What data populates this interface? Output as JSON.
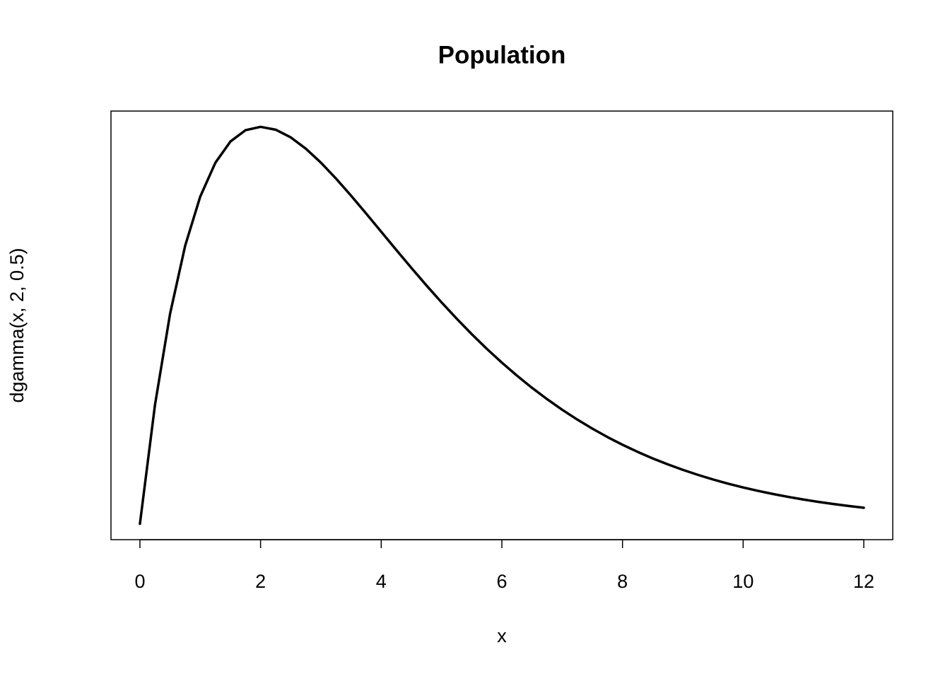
{
  "chart_data": {
    "type": "line",
    "title": "Population",
    "xlabel": "x",
    "ylabel": "dgamma(x, 2, 0.5)",
    "x": [
      0,
      0.25,
      0.5,
      0.75,
      1,
      1.25,
      1.5,
      1.75,
      2,
      2.25,
      2.5,
      2.75,
      3,
      3.25,
      3.5,
      3.75,
      4,
      4.25,
      4.5,
      4.75,
      5,
      5.25,
      5.5,
      5.75,
      6,
      6.25,
      6.5,
      6.75,
      7,
      7.25,
      7.5,
      7.75,
      8,
      8.25,
      8.5,
      8.75,
      9,
      9.25,
      9.5,
      9.75,
      10,
      10.25,
      10.5,
      10.75,
      11,
      11.25,
      11.5,
      11.75,
      12
    ],
    "series": [
      {
        "color": "#000000",
        "values": [
          0,
          0.05516,
          0.09735,
          0.12887,
          0.15163,
          0.16727,
          0.17714,
          0.18238,
          0.18394,
          0.18262,
          0.17906,
          0.17383,
          0.16735,
          0.15999,
          0.15205,
          0.14377,
          0.13534,
          0.12689,
          0.11858,
          0.11045,
          0.1026,
          0.09508,
          0.0879,
          0.0811,
          0.07468,
          0.06866,
          0.063,
          0.05775,
          0.05285,
          0.0483,
          0.0441,
          0.0402,
          0.03663,
          0.03333,
          0.0303,
          0.02754,
          0.025,
          0.02267,
          0.02054,
          0.0186,
          0.01684,
          0.01524,
          0.01378,
          0.01245,
          0.01124,
          0.01014,
          0.00915,
          0.00825,
          0.00744
        ]
      }
    ],
    "xlim": [
      -0.48,
      12.48
    ],
    "ylim": [
      -0.00736,
      0.19126
    ],
    "xticks": [
      0,
      2,
      4,
      6,
      8,
      10,
      12
    ]
  }
}
